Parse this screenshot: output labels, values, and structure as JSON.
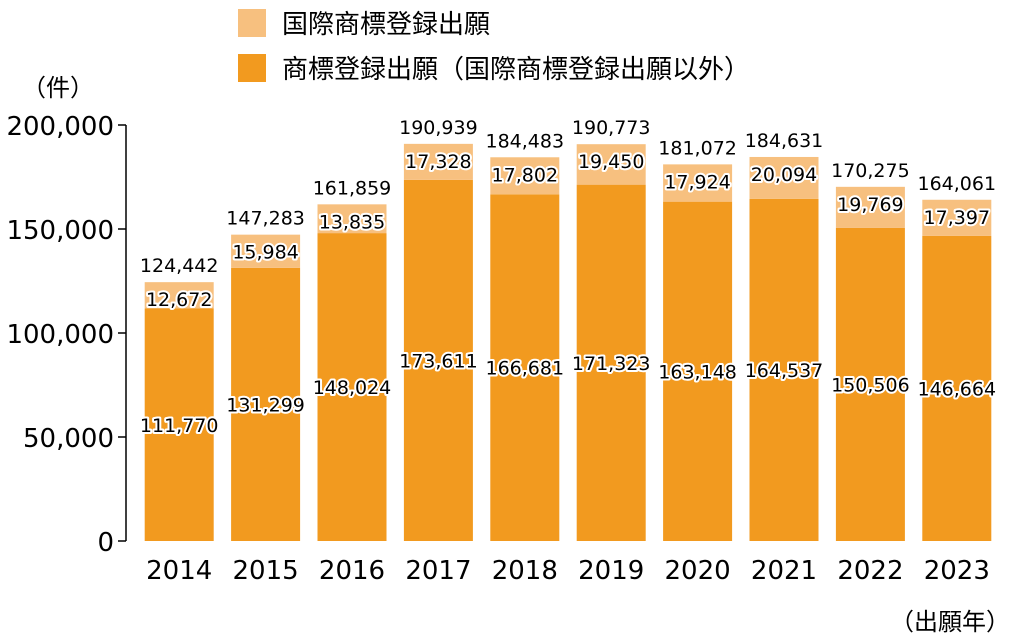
{
  "chart_data": {
    "type": "bar",
    "stacked": true,
    "categories": [
      "2014",
      "2015",
      "2016",
      "2017",
      "2018",
      "2019",
      "2020",
      "2021",
      "2022",
      "2023"
    ],
    "series": [
      {
        "name": "商標登録出願（国際商標登録出願以外）",
        "color": "#f29a1f",
        "values": [
          111770,
          131299,
          148024,
          173611,
          166681,
          171323,
          163148,
          164537,
          150506,
          146664
        ]
      },
      {
        "name": "国際商標登録出願",
        "color": "#f7c07f",
        "values": [
          12672,
          15984,
          13835,
          17328,
          17802,
          19450,
          17924,
          20094,
          19769,
          17397
        ]
      }
    ],
    "totals": [
      124442,
      147283,
      161859,
      190939,
      184483,
      190773,
      181072,
      184631,
      170275,
      164061
    ],
    "value_labels": {
      "bottom": [
        "111,770",
        "131,299",
        "148,024",
        "173,611",
        "166,681",
        "171,323",
        "163,148",
        "164,537",
        "150,506",
        "146,664"
      ],
      "top": [
        "12,672",
        "15,984",
        "13,835",
        "17,328",
        "17,802",
        "19,450",
        "17,924",
        "20,094",
        "19,769",
        "17,397"
      ],
      "totals": [
        "124,442",
        "147,283",
        "161,859",
        "190,939",
        "184,483",
        "190,773",
        "181,072",
        "184,631",
        "170,275",
        "164,061"
      ]
    },
    "y_ticks": [
      "0",
      "50,000",
      "100,000",
      "150,000",
      "200,000"
    ],
    "y_tick_values": [
      0,
      50000,
      100000,
      150000,
      200000
    ],
    "ylim": [
      0,
      200000
    ],
    "ylabel": "（件）",
    "xlabel": "（出願年）",
    "legend": {
      "position": "top",
      "items": [
        "国際商標登録出願",
        "商標登録出願（国際商標登録出願以外）"
      ]
    },
    "grid": false
  }
}
